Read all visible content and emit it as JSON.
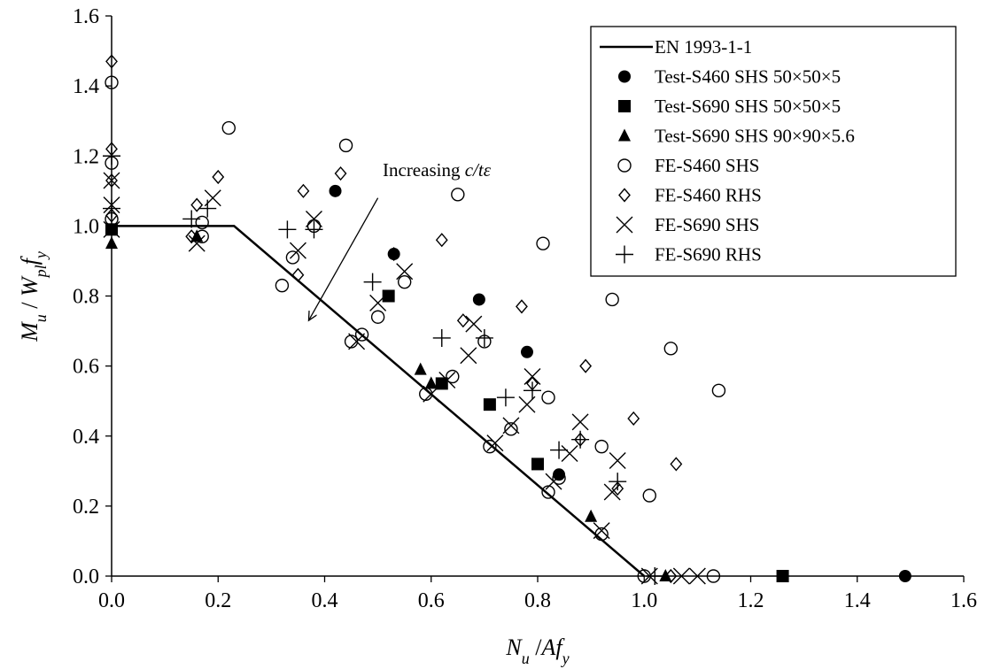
{
  "chart_data": {
    "type": "scatter",
    "title": "",
    "xlabel": {
      "main": "N",
      "sub": "u",
      "sep": " /",
      "main2": "Af",
      "sub2": "y"
    },
    "ylabel": {
      "main": "M",
      "sub": "u",
      "sep": " / ",
      "main2": "W",
      "sub2": "pl",
      "main3": "f",
      "sub3": "y"
    },
    "xlim": [
      0,
      1.6
    ],
    "ylim": [
      0,
      1.6
    ],
    "xticks": [
      "0.0",
      "0.2",
      "0.4",
      "0.6",
      "0.8",
      "1.0",
      "1.2",
      "1.4",
      "1.6"
    ],
    "yticks": [
      "0.0",
      "0.2",
      "0.4",
      "0.6",
      "0.8",
      "1.0",
      "1.2",
      "1.4",
      "1.6"
    ],
    "grid": false,
    "legend_position": "top-right",
    "annotation": {
      "text": "Increasing ",
      "italic": "c/tε",
      "arrow_from": [
        0.5,
        1.08
      ],
      "arrow_to": [
        0.37,
        0.73
      ]
    },
    "series": [
      {
        "name": "EN 1993-1-1",
        "marker": "line",
        "points": [
          [
            0,
            1.0
          ],
          [
            0.23,
            1.0
          ],
          [
            1.0,
            0.0
          ]
        ]
      },
      {
        "name": "Test-S460 SHS 50×50×5",
        "marker": "filled-circle",
        "points": [
          [
            0.42,
            1.1
          ],
          [
            0.53,
            0.92
          ],
          [
            0.69,
            0.79
          ],
          [
            0.78,
            0.64
          ],
          [
            0.84,
            0.29
          ],
          [
            1.49,
            0.0
          ]
        ]
      },
      {
        "name": "Test-S690 SHS 50×50×5",
        "marker": "filled-square",
        "points": [
          [
            0.0,
            0.99
          ],
          [
            0.52,
            0.8
          ],
          [
            0.62,
            0.55
          ],
          [
            0.71,
            0.49
          ],
          [
            0.8,
            0.32
          ],
          [
            1.26,
            0.0
          ]
        ]
      },
      {
        "name": "Test-S690 SHS 90×90×5.6",
        "marker": "filled-triangle",
        "points": [
          [
            0.0,
            0.95
          ],
          [
            0.16,
            0.97
          ],
          [
            0.58,
            0.59
          ],
          [
            0.6,
            0.55
          ],
          [
            0.9,
            0.17
          ],
          [
            1.04,
            0.0
          ]
        ]
      },
      {
        "name": "FE-S460 SHS",
        "marker": "open-circle",
        "points": [
          [
            0.0,
            1.41
          ],
          [
            0.0,
            1.18
          ],
          [
            0.0,
            1.02
          ],
          [
            0.17,
            1.01
          ],
          [
            0.17,
            0.97
          ],
          [
            0.22,
            1.28
          ],
          [
            0.32,
            0.83
          ],
          [
            0.34,
            0.91
          ],
          [
            0.38,
            1.0
          ],
          [
            0.44,
            1.23
          ],
          [
            0.45,
            0.67
          ],
          [
            0.47,
            0.69
          ],
          [
            0.5,
            0.74
          ],
          [
            0.55,
            0.84
          ],
          [
            0.59,
            0.52
          ],
          [
            0.64,
            0.57
          ],
          [
            0.65,
            1.09
          ],
          [
            0.7,
            0.67
          ],
          [
            0.71,
            0.37
          ],
          [
            0.75,
            0.42
          ],
          [
            0.81,
            0.95
          ],
          [
            0.82,
            0.51
          ],
          [
            0.82,
            0.24
          ],
          [
            0.84,
            0.28
          ],
          [
            0.92,
            0.37
          ],
          [
            0.92,
            0.12
          ],
          [
            0.94,
            0.79
          ],
          [
            1.01,
            0.23
          ],
          [
            1.05,
            0.65
          ],
          [
            1.13,
            0.0
          ],
          [
            1.14,
            0.53
          ],
          [
            1.0,
            0.0
          ]
        ]
      },
      {
        "name": "FE-S460 RHS",
        "marker": "open-diamond",
        "points": [
          [
            0.0,
            1.47
          ],
          [
            0.0,
            1.22
          ],
          [
            0.0,
            1.13
          ],
          [
            0.0,
            1.03
          ],
          [
            0.15,
            0.97
          ],
          [
            0.16,
            1.06
          ],
          [
            0.2,
            1.14
          ],
          [
            0.35,
            0.86
          ],
          [
            0.36,
            1.1
          ],
          [
            0.43,
            1.15
          ],
          [
            0.53,
            0.92
          ],
          [
            0.62,
            0.96
          ],
          [
            0.66,
            0.73
          ],
          [
            0.77,
            0.77
          ],
          [
            0.79,
            0.55
          ],
          [
            0.88,
            0.39
          ],
          [
            0.89,
            0.6
          ],
          [
            0.95,
            0.25
          ],
          [
            0.98,
            0.45
          ],
          [
            1.06,
            0.32
          ],
          [
            1.05,
            0.0
          ]
        ]
      },
      {
        "name": "FE-S690 SHS",
        "marker": "x",
        "points": [
          [
            0.0,
            1.13
          ],
          [
            0.0,
            1.06
          ],
          [
            0.0,
            0.99
          ],
          [
            0.16,
            0.95
          ],
          [
            0.19,
            1.08
          ],
          [
            0.35,
            0.93
          ],
          [
            0.38,
            1.02
          ],
          [
            0.46,
            0.67
          ],
          [
            0.5,
            0.78
          ],
          [
            0.55,
            0.87
          ],
          [
            0.6,
            0.52
          ],
          [
            0.63,
            0.56
          ],
          [
            0.67,
            0.63
          ],
          [
            0.68,
            0.72
          ],
          [
            0.72,
            0.38
          ],
          [
            0.75,
            0.43
          ],
          [
            0.78,
            0.49
          ],
          [
            0.79,
            0.57
          ],
          [
            0.83,
            0.27
          ],
          [
            0.86,
            0.35
          ],
          [
            0.88,
            0.44
          ],
          [
            0.92,
            0.13
          ],
          [
            0.94,
            0.24
          ],
          [
            0.95,
            0.33
          ],
          [
            1.01,
            0.0
          ],
          [
            1.07,
            0.0
          ],
          [
            1.1,
            0.0
          ]
        ]
      },
      {
        "name": "FE-S690 RHS",
        "marker": "plus",
        "points": [
          [
            0.0,
            1.2
          ],
          [
            0.0,
            1.05
          ],
          [
            0.15,
            1.02
          ],
          [
            0.18,
            1.05
          ],
          [
            0.33,
            0.99
          ],
          [
            0.38,
            0.99
          ],
          [
            0.49,
            0.84
          ],
          [
            0.62,
            0.68
          ],
          [
            0.7,
            0.68
          ],
          [
            0.74,
            0.51
          ],
          [
            0.79,
            0.53
          ],
          [
            0.84,
            0.36
          ],
          [
            0.88,
            0.39
          ],
          [
            0.95,
            0.27
          ],
          [
            1.02,
            0.0
          ]
        ]
      }
    ]
  }
}
